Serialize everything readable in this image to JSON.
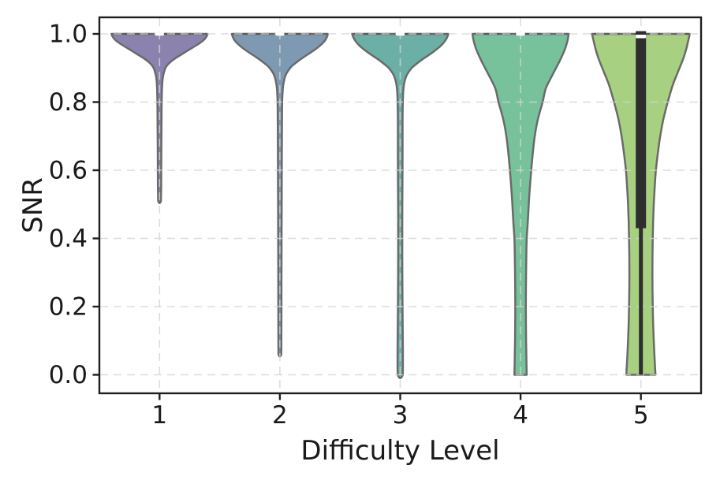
{
  "chart_data": {
    "type": "violin",
    "title": "",
    "xlabel": "Difficulty Level",
    "ylabel": "SNR",
    "categories": [
      "1",
      "2",
      "3",
      "4",
      "5"
    ],
    "x_tick_labels": [
      "1",
      "2",
      "3",
      "4",
      "5"
    ],
    "yticks": [
      0.0,
      0.2,
      0.4,
      0.6,
      0.8,
      1.0
    ],
    "y_tick_labels": [
      "0.0",
      "0.2",
      "0.4",
      "0.6",
      "0.8",
      "1.0"
    ],
    "ylim": [
      -0.053,
      1.052
    ],
    "grid": "dashed gridlines on both axes, drawn over violin bodies",
    "legend": "none",
    "series": [
      {
        "category": "1",
        "fill": "#8b83ae",
        "median": 1.0,
        "range": [
          0.51,
          1.0
        ],
        "tip": "round",
        "profile": [
          [
            1.0,
            61
          ],
          [
            0.99,
            59
          ],
          [
            0.98,
            55
          ],
          [
            0.97,
            49
          ],
          [
            0.96,
            42
          ],
          [
            0.95,
            35
          ],
          [
            0.94,
            28
          ],
          [
            0.93,
            21
          ],
          [
            0.92,
            15
          ],
          [
            0.91,
            10.5
          ],
          [
            0.9,
            7.5
          ],
          [
            0.88,
            4.8
          ],
          [
            0.86,
            3.6
          ],
          [
            0.83,
            3.0
          ],
          [
            0.78,
            2.6
          ],
          [
            0.7,
            2.4
          ],
          [
            0.62,
            2.2
          ],
          [
            0.56,
            2.1
          ],
          [
            0.51,
            1.8
          ]
        ]
      },
      {
        "category": "2",
        "fill": "#7e9ab2",
        "median": 1.0,
        "range": [
          0.06,
          1.0
        ],
        "tip": "round",
        "profile": [
          [
            1.0,
            61
          ],
          [
            0.99,
            59.5
          ],
          [
            0.98,
            57
          ],
          [
            0.97,
            53
          ],
          [
            0.96,
            48
          ],
          [
            0.95,
            42
          ],
          [
            0.94,
            35.5
          ],
          [
            0.93,
            29
          ],
          [
            0.92,
            23
          ],
          [
            0.91,
            17.5
          ],
          [
            0.9,
            13
          ],
          [
            0.88,
            7.5
          ],
          [
            0.86,
            5.0
          ],
          [
            0.84,
            3.8
          ],
          [
            0.81,
            3.0
          ],
          [
            0.75,
            2.7
          ],
          [
            0.65,
            2.5
          ],
          [
            0.5,
            2.3
          ],
          [
            0.35,
            2.1
          ],
          [
            0.2,
            2.0
          ],
          [
            0.1,
            1.9
          ],
          [
            0.06,
            1.8
          ]
        ]
      },
      {
        "category": "3",
        "fill": "#6cafa6",
        "median": 1.0,
        "range": [
          0.0,
          1.0
        ],
        "tip": "round",
        "profile": [
          [
            1.0,
            61
          ],
          [
            0.99,
            59.5
          ],
          [
            0.98,
            57
          ],
          [
            0.97,
            53.5
          ],
          [
            0.96,
            49
          ],
          [
            0.95,
            43.5
          ],
          [
            0.94,
            37.5
          ],
          [
            0.93,
            31
          ],
          [
            0.92,
            25
          ],
          [
            0.91,
            19.5
          ],
          [
            0.9,
            14.5
          ],
          [
            0.88,
            8.5
          ],
          [
            0.86,
            5.5
          ],
          [
            0.84,
            4.2
          ],
          [
            0.81,
            3.4
          ],
          [
            0.75,
            3.0
          ],
          [
            0.65,
            3.0
          ],
          [
            0.55,
            2.8
          ],
          [
            0.45,
            2.6
          ],
          [
            0.35,
            2.6
          ],
          [
            0.25,
            2.8
          ],
          [
            0.15,
            3.1
          ],
          [
            0.07,
            3.4
          ],
          [
            0.02,
            3.4
          ],
          [
            0.0,
            3.2
          ]
        ]
      },
      {
        "category": "4",
        "fill": "#77c19b",
        "median": 1.0,
        "range": [
          0.0,
          1.0
        ],
        "tip": "flat",
        "profile": [
          [
            1.0,
            61
          ],
          [
            0.98,
            59.5
          ],
          [
            0.96,
            57
          ],
          [
            0.94,
            53.5
          ],
          [
            0.92,
            49.5
          ],
          [
            0.9,
            45
          ],
          [
            0.88,
            40.5
          ],
          [
            0.86,
            36
          ],
          [
            0.84,
            32
          ],
          [
            0.82,
            29.8
          ],
          [
            0.8,
            28
          ],
          [
            0.75,
            22
          ],
          [
            0.7,
            18
          ],
          [
            0.65,
            15.5
          ],
          [
            0.6,
            13.5
          ],
          [
            0.55,
            11.8
          ],
          [
            0.5,
            10.4
          ],
          [
            0.45,
            9.2
          ],
          [
            0.4,
            7.8
          ],
          [
            0.35,
            7.3
          ],
          [
            0.3,
            7.0
          ],
          [
            0.25,
            6.8
          ],
          [
            0.2,
            6.7
          ],
          [
            0.15,
            6.8
          ],
          [
            0.1,
            7.0
          ],
          [
            0.05,
            7.4
          ],
          [
            0.0,
            7.8
          ]
        ]
      },
      {
        "category": "5",
        "fill": "#a7d181",
        "median": 1.0,
        "range": [
          0.0,
          1.0
        ],
        "tip": "flat",
        "box": {
          "q3": 1.0,
          "q1": 0.43,
          "whisker_min": 0.0
        },
        "profile": [
          [
            1.0,
            62
          ],
          [
            0.98,
            60
          ],
          [
            0.96,
            58
          ],
          [
            0.94,
            55.5
          ],
          [
            0.92,
            52.5
          ],
          [
            0.9,
            49
          ],
          [
            0.88,
            45.5
          ],
          [
            0.86,
            42
          ],
          [
            0.84,
            39
          ],
          [
            0.82,
            36.5
          ],
          [
            0.8,
            34
          ],
          [
            0.75,
            28.5
          ],
          [
            0.7,
            24.5
          ],
          [
            0.65,
            21.5
          ],
          [
            0.6,
            19
          ],
          [
            0.55,
            17.5
          ],
          [
            0.5,
            16.3
          ],
          [
            0.45,
            15.5
          ],
          [
            0.4,
            15
          ],
          [
            0.35,
            14.7
          ],
          [
            0.3,
            14.6
          ],
          [
            0.25,
            14.7
          ],
          [
            0.2,
            15
          ],
          [
            0.15,
            15.5
          ],
          [
            0.1,
            16.3
          ],
          [
            0.05,
            17.3
          ],
          [
            0.0,
            18.5
          ]
        ]
      }
    ]
  },
  "colors": {
    "background": "#ffffff",
    "violin_edge": "#6a6a6a",
    "edge_top_dash": "#4a4a4a",
    "grid": "#d4d4d4",
    "spine": "#1f1f1f",
    "tick": "#1f1f1f",
    "text": "#1a1a1a",
    "box": "#2e2e2e",
    "median_tick": "#ffffff"
  }
}
